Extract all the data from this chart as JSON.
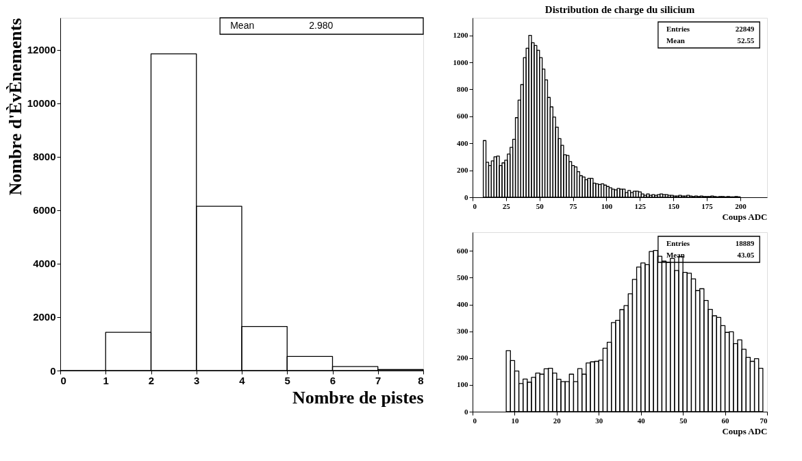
{
  "chart_data": [
    {
      "type": "histogram",
      "xlabel": "Nombre de pistes",
      "ylabel": "Nombre d'ÈvÈnements",
      "color": "#000000",
      "bins": [
        0,
        1,
        2,
        3,
        4,
        5,
        6,
        7,
        8
      ],
      "values": [
        0,
        1430,
        11850,
        6150,
        1650,
        530,
        150,
        40
      ],
      "xlim": [
        0,
        8
      ],
      "ylim": [
        0,
        13200
      ],
      "xticks": [
        0,
        1,
        2,
        3,
        4,
        5,
        6,
        7,
        8
      ],
      "yticks": [
        0,
        2000,
        4000,
        6000,
        8000,
        10000,
        12000
      ],
      "annotations": [
        "Mean 2.980"
      ]
    },
    {
      "type": "histogram",
      "title": "Distribution de charge du silicium",
      "xlabel": "Coups ADC",
      "color": "#000000",
      "bins": [
        8,
        10,
        12,
        14,
        16,
        18,
        20,
        22,
        24,
        26,
        28,
        30,
        32,
        34,
        36,
        38,
        40,
        42,
        44,
        46,
        48,
        50,
        52,
        54,
        56,
        58,
        60,
        62,
        64,
        66,
        68,
        70,
        72,
        74,
        76,
        78,
        80,
        82,
        84,
        86,
        88,
        90,
        92,
        94,
        96,
        98,
        100,
        102,
        104,
        106,
        108,
        110,
        112,
        114,
        116,
        118,
        120,
        122,
        124,
        126,
        128,
        130,
        132,
        134,
        136,
        138,
        140,
        142,
        144,
        146,
        148,
        150,
        152,
        154,
        156,
        158,
        160,
        162,
        164,
        166,
        168,
        170,
        172,
        174,
        176,
        178,
        180,
        182,
        184,
        186,
        188,
        190,
        192,
        194,
        196,
        198,
        200
      ],
      "values": [
        420,
        260,
        235,
        270,
        300,
        305,
        235,
        255,
        275,
        320,
        370,
        430,
        590,
        720,
        835,
        1035,
        1105,
        1200,
        1145,
        1125,
        1090,
        1035,
        950,
        870,
        740,
        670,
        595,
        520,
        435,
        385,
        315,
        310,
        265,
        235,
        225,
        190,
        160,
        150,
        130,
        140,
        140,
        105,
        100,
        95,
        100,
        90,
        80,
        70,
        60,
        55,
        65,
        60,
        60,
        35,
        50,
        35,
        45,
        45,
        40,
        25,
        15,
        25,
        15,
        20,
        15,
        20,
        25,
        20,
        20,
        15,
        15,
        10,
        10,
        15,
        10,
        10,
        15,
        10,
        5,
        10,
        5,
        10,
        5,
        5,
        5,
        10,
        5,
        3,
        5,
        5,
        3,
        5,
        3,
        3,
        5,
        3
      ],
      "xlim": [
        0,
        220
      ],
      "ylim": [
        0,
        1330
      ],
      "xticks": [
        0,
        25,
        50,
        75,
        100,
        125,
        150,
        175,
        200
      ],
      "yticks": [
        0,
        200,
        400,
        600,
        800,
        1000,
        1200
      ],
      "annotations": [
        "Entries 22849",
        "Mean 52.55"
      ]
    },
    {
      "type": "histogram",
      "xlabel": "Coups ADC",
      "color": "#000000",
      "bins": [
        8,
        9,
        10,
        11,
        12,
        13,
        14,
        15,
        16,
        17,
        18,
        19,
        20,
        21,
        22,
        23,
        24,
        25,
        26,
        27,
        28,
        29,
        30,
        31,
        32,
        33,
        34,
        35,
        36,
        37,
        38,
        39,
        40,
        41,
        42,
        43,
        44,
        45,
        46,
        47,
        48,
        49,
        50,
        51,
        52,
        53,
        54,
        55,
        56,
        57,
        58,
        59,
        60,
        61,
        62,
        63,
        64,
        65,
        66,
        67,
        68,
        69
      ],
      "values": [
        228,
        191,
        152,
        105,
        122,
        110,
        128,
        144,
        140,
        160,
        162,
        144,
        121,
        112,
        112,
        140,
        112,
        161,
        140,
        182,
        186,
        188,
        192,
        237,
        259,
        333,
        341,
        381,
        396,
        440,
        494,
        540,
        555,
        549,
        598,
        602,
        580,
        562,
        558,
        572,
        527,
        579,
        520,
        517,
        496,
        452,
        459,
        415,
        382,
        358,
        352,
        321,
        296,
        298,
        254,
        268,
        233,
        203,
        188,
        198,
        162
      ],
      "xlim": [
        0,
        70
      ],
      "ylim": [
        0,
        670
      ],
      "xticks": [
        0,
        10,
        20,
        30,
        40,
        50,
        60,
        70
      ],
      "yticks": [
        0,
        100,
        200,
        300,
        400,
        500,
        600
      ],
      "annotations": [
        "Entries 18889",
        "Mean 43.05"
      ]
    }
  ]
}
